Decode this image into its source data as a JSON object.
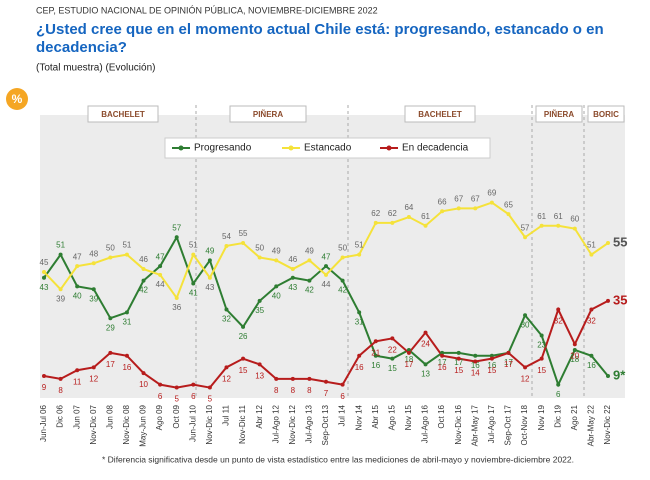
{
  "header": "CEP, ESTUDIO NACIONAL DE OPINIÓN PÚBLICA, NOVIEMBRE-DICIEMBRE 2022",
  "icon": "%",
  "chart_data": {
    "type": "line",
    "title": "¿Usted cree que en el momento actual Chile está: progresando, estancado o en decadencia?",
    "subtitle": "(Total muestra) (Evolución)",
    "periods": [
      "BACHELET",
      "PIÑERA",
      "BACHELET",
      "PIÑERA",
      "BORIC"
    ],
    "categories": [
      "Jun-Jul 06",
      "Dic 06",
      "Jun 07",
      "Nov-Dic 07",
      "Jun 08",
      "Nov-Dic 08",
      "May-Jun 09",
      "Ago 09",
      "Oct 09",
      "Jun-Jul 10",
      "Nov-Dic 10",
      "Jul 11",
      "Nov-Dic 11",
      "Abr 12",
      "Jul-Ago 12",
      "Nov-Dic 12",
      "Jul-Ago 13",
      "Sep-Oct 13",
      "Jul 14",
      "Nov 14",
      "Abr 15",
      "Ago 15",
      "Nov 15",
      "Jul-Ago 16",
      "Oct 16",
      "Nov-Dic 16",
      "Abr-May 17",
      "Jul-Ago 17",
      "Sep-Oct 17",
      "Oct-Nov 18",
      "Nov 19",
      "Dic 19",
      "Ago 21",
      "Abr-May 22",
      "Nov-Dic 22"
    ],
    "series": [
      {
        "name": "Progresando",
        "color": "#2e7d32",
        "values": [
          43,
          51,
          40,
          39,
          29,
          31,
          42,
          47,
          57,
          41,
          49,
          32,
          26,
          35,
          40,
          43,
          42,
          47,
          42,
          31,
          16,
          15,
          18,
          13,
          17,
          17,
          16,
          16,
          17,
          30,
          23,
          6,
          18,
          16,
          9
        ],
        "value_labels": [
          "43",
          "51",
          "40",
          "39",
          "29",
          "31",
          "42",
          "47",
          "57",
          "41",
          "49",
          "32",
          "26",
          "35",
          "40",
          "43",
          "42",
          "47",
          "42",
          "31",
          "16",
          "15",
          "18",
          "13",
          "17",
          "17",
          "16",
          "16",
          "17",
          "30",
          "23",
          "6",
          "18",
          "16",
          "9*"
        ]
      },
      {
        "name": "Estancado",
        "color": "#f5e23a",
        "values": [
          45,
          39,
          47,
          48,
          50,
          51,
          46,
          44,
          36,
          51,
          43,
          54,
          55,
          50,
          49,
          46,
          49,
          44,
          50,
          51,
          62,
          62,
          64,
          61,
          66,
          67,
          67,
          69,
          65,
          57,
          61,
          61,
          60,
          51,
          55
        ]
      },
      {
        "name": "En decadencia",
        "color": "#b71c1c",
        "values": [
          9,
          8,
          11,
          12,
          17,
          16,
          10,
          6,
          5,
          6,
          5,
          12,
          15,
          13,
          8,
          8,
          8,
          7,
          6,
          16,
          21,
          22,
          17,
          24,
          16,
          15,
          14,
          15,
          17,
          12,
          15,
          32,
          20,
          32,
          35
        ]
      }
    ],
    "ylim": [
      0,
      100
    ],
    "footnote": "* Diferencia significativa desde un punto de vista estadístico entre las mediciones de abril-mayo y noviembre-diciembre 2022."
  }
}
